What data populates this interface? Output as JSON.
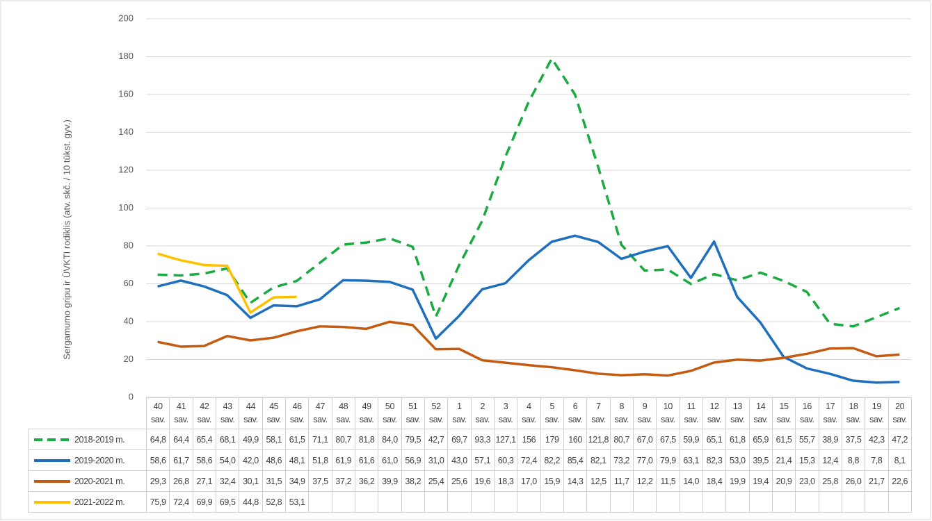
{
  "chart_data": {
    "type": "line",
    "ylabel": "Sergamumo gripu ir ŪVKTI rodiklis (atv. skč. / 10 tūkst. gyv.)",
    "categories": [
      "40 sav.",
      "41 sav.",
      "42 sav.",
      "43 sav.",
      "44 sav.",
      "45 sav.",
      "46 sav.",
      "47 sav.",
      "48 sav.",
      "49 sav.",
      "50 sav.",
      "51 sav.",
      "52 sav.",
      "1 sav.",
      "2 sav.",
      "3 sav.",
      "4 sav.",
      "5 sav.",
      "6 sav.",
      "7 sav.",
      "8 sav.",
      "9 sav.",
      "10 sav.",
      "11 sav.",
      "12 sav.",
      "13 sav.",
      "14 sav.",
      "15 sav.",
      "16 sav.",
      "17 sav.",
      "18 sav.",
      "19 sav.",
      "20 sav."
    ],
    "ylim": [
      0,
      200
    ],
    "yticks": [
      0,
      20,
      40,
      60,
      80,
      100,
      120,
      140,
      160,
      180,
      200
    ],
    "grid": true,
    "series": [
      {
        "name": "2018-2019 m.",
        "color": "#1aab40",
        "dashed": true,
        "values": [
          64.8,
          64.4,
          65.4,
          68.1,
          49.9,
          58.1,
          61.5,
          71.1,
          80.7,
          81.8,
          84.0,
          79.5,
          42.7,
          69.7,
          93.3,
          127.1,
          156,
          179,
          160,
          121.8,
          80.7,
          67.0,
          67.5,
          59.9,
          65.1,
          61.8,
          65.9,
          61.5,
          55.7,
          38.9,
          37.5,
          42.3,
          47.2
        ],
        "value_labels": [
          "64,8",
          "64,4",
          "65,4",
          "68,1",
          "49,9",
          "58,1",
          "61,5",
          "71,1",
          "80,7",
          "81,8",
          "84,0",
          "79,5",
          "42,7",
          "69,7",
          "93,3",
          "127,1",
          "156",
          "179",
          "160",
          "121,8",
          "80,7",
          "67,0",
          "67,5",
          "59,9",
          "65,1",
          "61,8",
          "65,9",
          "61,5",
          "55,7",
          "38,9",
          "37,5",
          "42,3",
          "47,2"
        ]
      },
      {
        "name": "2019-2020 m.",
        "color": "#1f6fbf",
        "dashed": false,
        "values": [
          58.6,
          61.7,
          58.6,
          54.0,
          42.0,
          48.6,
          48.1,
          51.8,
          61.9,
          61.6,
          61.0,
          56.9,
          31.0,
          43.0,
          57.1,
          60.3,
          72.4,
          82.2,
          85.4,
          82.1,
          73.2,
          77.0,
          79.9,
          63.1,
          82.3,
          53.0,
          39.5,
          21.4,
          15.3,
          12.4,
          8.8,
          7.8,
          8.1
        ],
        "value_labels": [
          "58,6",
          "61,7",
          "58,6",
          "54,0",
          "42,0",
          "48,6",
          "48,1",
          "51,8",
          "61,9",
          "61,6",
          "61,0",
          "56,9",
          "31,0",
          "43,0",
          "57,1",
          "60,3",
          "72,4",
          "82,2",
          "85,4",
          "82,1",
          "73,2",
          "77,0",
          "79,9",
          "63,1",
          "82,3",
          "53,0",
          "39,5",
          "21,4",
          "15,3",
          "12,4",
          "8,8",
          "7,8",
          "8,1"
        ]
      },
      {
        "name": "2020-2021 m.",
        "color": "#c55a11",
        "dashed": false,
        "values": [
          29.3,
          26.8,
          27.1,
          32.4,
          30.1,
          31.5,
          34.9,
          37.5,
          37.2,
          36.2,
          39.9,
          38.2,
          25.4,
          25.6,
          19.6,
          18.3,
          17.0,
          15.9,
          14.3,
          12.5,
          11.7,
          12.2,
          11.5,
          14.0,
          18.4,
          19.9,
          19.4,
          20.9,
          23.0,
          25.8,
          26.0,
          21.7,
          22.6
        ],
        "value_labels": [
          "29,3",
          "26,8",
          "27,1",
          "32,4",
          "30,1",
          "31,5",
          "34,9",
          "37,5",
          "37,2",
          "36,2",
          "39,9",
          "38,2",
          "25,4",
          "25,6",
          "19,6",
          "18,3",
          "17,0",
          "15,9",
          "14,3",
          "12,5",
          "11,7",
          "12,2",
          "11,5",
          "14,0",
          "18,4",
          "19,9",
          "19,4",
          "20,9",
          "23,0",
          "25,8",
          "26,0",
          "21,7",
          "22,6"
        ]
      },
      {
        "name": "2021-2022 m.",
        "color": "#ffc000",
        "dashed": false,
        "values": [
          75.9,
          72.4,
          69.9,
          69.5,
          44.8,
          52.8,
          53.1,
          null,
          null,
          null,
          null,
          null,
          null,
          null,
          null,
          null,
          null,
          null,
          null,
          null,
          null,
          null,
          null,
          null,
          null,
          null,
          null,
          null,
          null,
          null,
          null,
          null,
          null
        ],
        "value_labels": [
          "75,9",
          "72,4",
          "69,9",
          "69,5",
          "44,8",
          "52,8",
          "53,1",
          null,
          null,
          null,
          null,
          null,
          null,
          null,
          null,
          null,
          null,
          null,
          null,
          null,
          null,
          null,
          null,
          null,
          null,
          null,
          null,
          null,
          null,
          null,
          null,
          null,
          null
        ]
      }
    ]
  }
}
